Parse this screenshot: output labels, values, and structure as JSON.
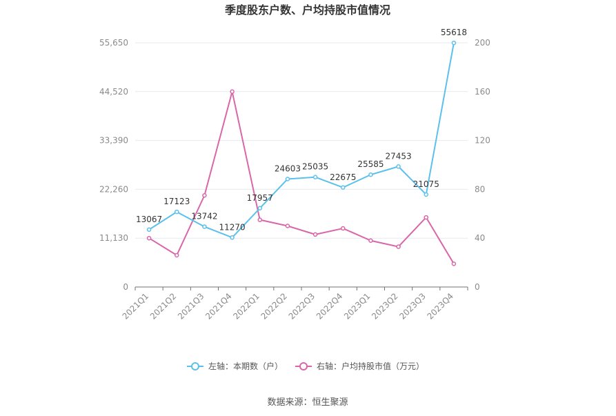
{
  "chart_data": {
    "type": "line",
    "title": "季度股东户数、户均持股市值情况",
    "categories": [
      "2021Q1",
      "2021Q2",
      "2021Q3",
      "2021Q4",
      "2022Q1",
      "2022Q2",
      "2022Q3",
      "2022Q4",
      "2023Q1",
      "2023Q2",
      "2023Q3",
      "2023Q4"
    ],
    "left_axis": {
      "ticks": [
        "0",
        "11,130",
        "22,260",
        "33,390",
        "44,520",
        "55,650"
      ],
      "ylim": [
        0,
        55650
      ]
    },
    "right_axis": {
      "ticks": [
        "0",
        "40",
        "80",
        "120",
        "160",
        "200"
      ],
      "ylim": [
        0,
        200
      ]
    },
    "series": [
      {
        "name": "左轴：本期数（户）",
        "axis": "left",
        "color": "#5bc0eb",
        "values": [
          13067,
          17123,
          13742,
          11270,
          17957,
          24603,
          25035,
          22675,
          25585,
          27453,
          21075,
          55618
        ],
        "labels": [
          "13067",
          "17123",
          "13742",
          "11270",
          "17957",
          "24603",
          "25035",
          "22675",
          "25585",
          "27453",
          "21075",
          "55618"
        ]
      },
      {
        "name": "右轴：户均持股市值（万元）",
        "axis": "right",
        "color": "#d966a8",
        "values": [
          40,
          26,
          75,
          160,
          55,
          50,
          43,
          48,
          38,
          33,
          57,
          19
        ]
      }
    ],
    "grid": true,
    "legend_position": "bottom"
  },
  "footer": {
    "source": "数据来源：恒生聚源"
  }
}
